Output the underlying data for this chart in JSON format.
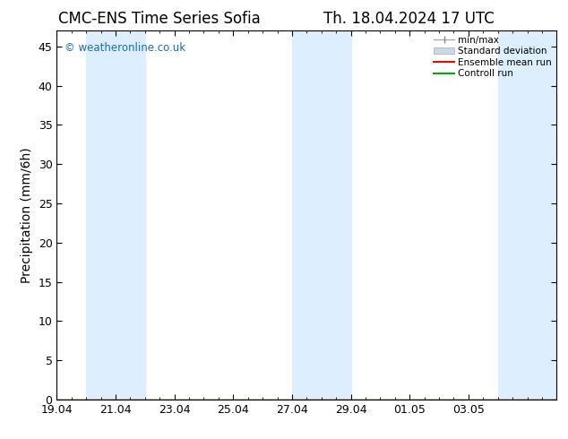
{
  "title_left": "CMC-ENS Time Series Sofia",
  "title_right": "Th. 18.04.2024 17 UTC",
  "ylabel": "Precipitation (mm/6h)",
  "ylim": [
    0,
    47
  ],
  "yticks": [
    0,
    5,
    10,
    15,
    20,
    25,
    30,
    35,
    40,
    45
  ],
  "xtick_labels": [
    "19.04",
    "21.04",
    "23.04",
    "25.04",
    "27.04",
    "29.04",
    "01.05",
    "03.05"
  ],
  "copyright_text": "© weatheronline.co.uk",
  "shaded_bands": [
    {
      "x_start": 20,
      "x_end": 22,
      "color": "#ddeeff"
    },
    {
      "x_start": 27,
      "x_end": 29,
      "color": "#ddeeff"
    },
    {
      "x_start": 34,
      "x_end": 36,
      "color": "#ddeeff"
    }
  ],
  "background_color": "#ffffff",
  "plot_bg_color": "#ffffff",
  "title_fontsize": 12,
  "ylabel_fontsize": 10,
  "tick_fontsize": 9,
  "copyright_color": "#1a6bb5",
  "x_num_ticks": 8,
  "xlim": [
    19,
    36
  ],
  "xtick_positions": [
    19,
    21,
    23,
    25,
    27,
    29,
    31,
    33
  ],
  "legend_labels": [
    "min/max",
    "Standard deviation",
    "Ensemble mean run",
    "Controll run"
  ],
  "legend_colors": [
    "#999999",
    "#c8d8e8",
    "#ff0000",
    "#00aa00"
  ]
}
